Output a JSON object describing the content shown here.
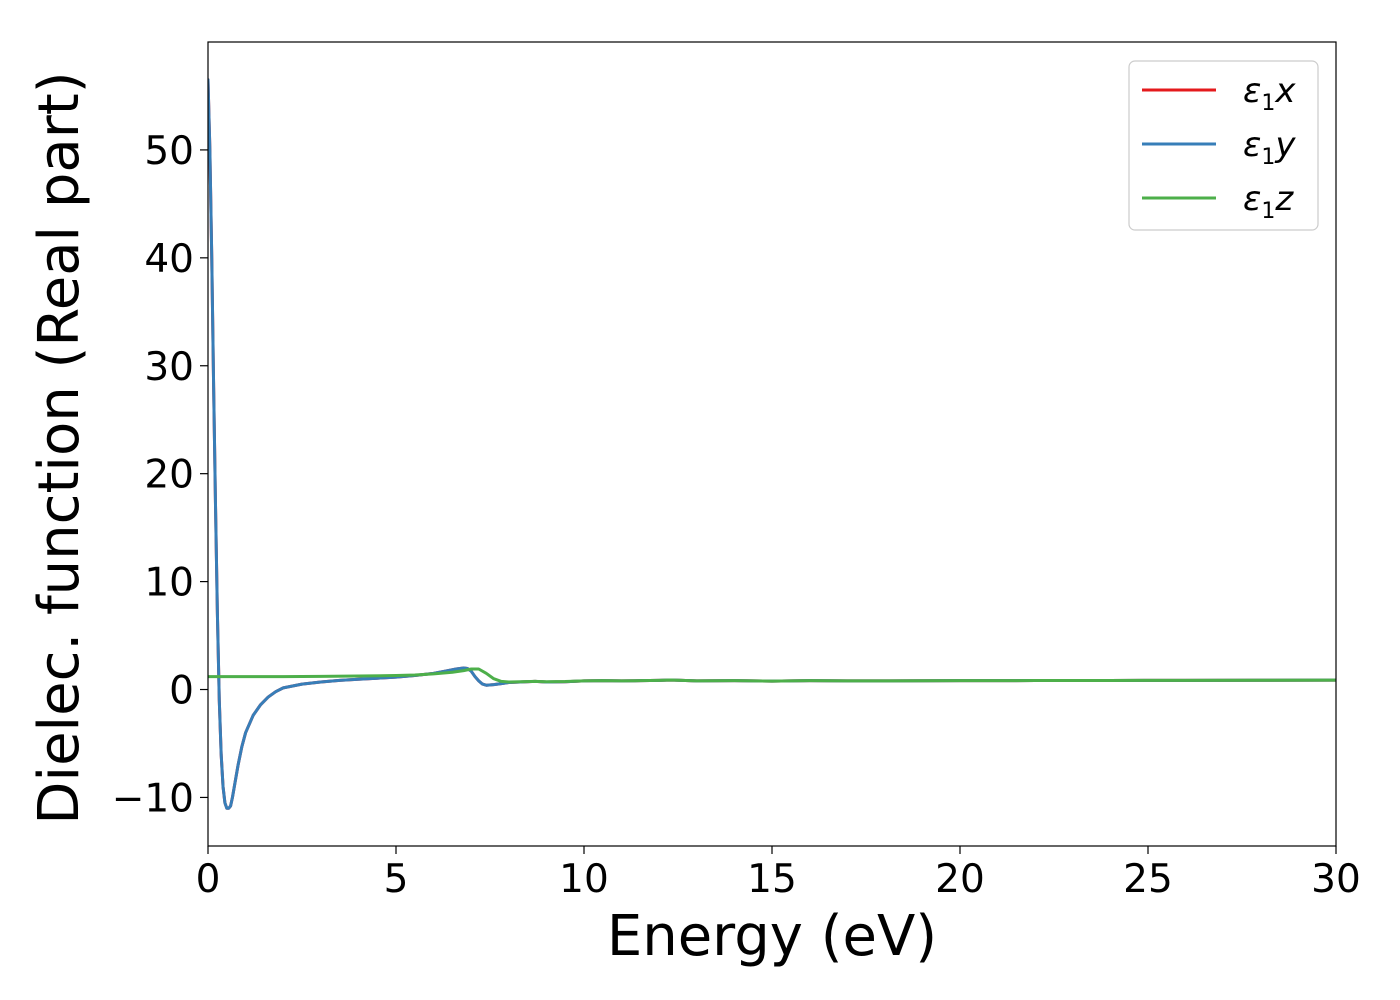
{
  "chart_data": {
    "type": "line",
    "title": "",
    "xlabel": "Energy (eV)",
    "ylabel": "Dielec. function (Real part)",
    "xlim": [
      0,
      30
    ],
    "ylim": [
      -14.5,
      60
    ],
    "xticks": [
      0,
      5,
      10,
      15,
      20,
      25,
      30
    ],
    "yticks": [
      -10,
      0,
      10,
      20,
      30,
      40,
      50
    ],
    "xtick_labels": [
      "0",
      "5",
      "10",
      "15",
      "20",
      "25",
      "30"
    ],
    "ytick_labels": [
      "−10",
      "0",
      "10",
      "20",
      "30",
      "40",
      "50"
    ],
    "grid": false,
    "legend_position": "top-right",
    "series": [
      {
        "name": "ε1x",
        "legend_main": "ε",
        "legend_sub": "1",
        "legend_var": "x",
        "color": "#e41a1c",
        "x": [
          0.0,
          0.05,
          0.1,
          0.15,
          0.2,
          0.25,
          0.3,
          0.35,
          0.4,
          0.45,
          0.5,
          0.55,
          0.6,
          0.65,
          0.7,
          0.8,
          0.9,
          1.0,
          1.2,
          1.4,
          1.6,
          1.8,
          2.0,
          2.5,
          3.0,
          3.5,
          4.0,
          4.5,
          5.0,
          5.5,
          6.0,
          6.3,
          6.6,
          6.8,
          6.9,
          7.0,
          7.1,
          7.2,
          7.3,
          7.4,
          7.6,
          7.8,
          8.0,
          8.3,
          8.7,
          9.0,
          9.5,
          10.0,
          10.5,
          11.0,
          11.5,
          12.0,
          12.3,
          12.6,
          13.0,
          14.0,
          15.0,
          16.0,
          17.0,
          18.0,
          20.0,
          22.0,
          24.0,
          26.0,
          28.0,
          30.0
        ],
        "y": [
          56.5,
          50.0,
          40.0,
          28.0,
          17.0,
          7.0,
          -1.0,
          -6.0,
          -9.0,
          -10.5,
          -11.0,
          -11.0,
          -10.8,
          -10.0,
          -9.0,
          -7.0,
          -5.3,
          -4.0,
          -2.4,
          -1.4,
          -0.7,
          -0.2,
          0.15,
          0.5,
          0.7,
          0.85,
          0.95,
          1.05,
          1.15,
          1.3,
          1.5,
          1.7,
          1.9,
          2.0,
          1.95,
          1.7,
          1.2,
          0.8,
          0.5,
          0.4,
          0.45,
          0.55,
          0.65,
          0.7,
          0.75,
          0.7,
          0.72,
          0.8,
          0.82,
          0.8,
          0.82,
          0.85,
          0.88,
          0.85,
          0.8,
          0.82,
          0.78,
          0.82,
          0.8,
          0.8,
          0.82,
          0.83,
          0.84,
          0.85,
          0.86,
          0.87
        ]
      },
      {
        "name": "ε1y",
        "legend_main": "ε",
        "legend_sub": "1",
        "legend_var": "y",
        "color": "#377eb8",
        "x": [
          0.0,
          0.05,
          0.1,
          0.15,
          0.2,
          0.25,
          0.3,
          0.35,
          0.4,
          0.45,
          0.5,
          0.55,
          0.6,
          0.65,
          0.7,
          0.8,
          0.9,
          1.0,
          1.2,
          1.4,
          1.6,
          1.8,
          2.0,
          2.5,
          3.0,
          3.5,
          4.0,
          4.5,
          5.0,
          5.5,
          6.0,
          6.3,
          6.6,
          6.8,
          6.9,
          7.0,
          7.1,
          7.2,
          7.3,
          7.4,
          7.6,
          7.8,
          8.0,
          8.3,
          8.7,
          9.0,
          9.5,
          10.0,
          10.5,
          11.0,
          11.5,
          12.0,
          12.3,
          12.6,
          13.0,
          14.0,
          15.0,
          16.0,
          17.0,
          18.0,
          20.0,
          22.0,
          24.0,
          26.0,
          28.0,
          30.0
        ],
        "y": [
          56.5,
          50.0,
          40.0,
          28.0,
          17.0,
          7.0,
          -1.0,
          -6.0,
          -9.0,
          -10.5,
          -11.0,
          -11.0,
          -10.8,
          -10.0,
          -9.0,
          -7.0,
          -5.3,
          -4.0,
          -2.4,
          -1.4,
          -0.7,
          -0.2,
          0.15,
          0.5,
          0.7,
          0.85,
          0.95,
          1.05,
          1.15,
          1.3,
          1.5,
          1.7,
          1.9,
          2.0,
          1.95,
          1.7,
          1.2,
          0.8,
          0.5,
          0.4,
          0.45,
          0.55,
          0.65,
          0.7,
          0.75,
          0.7,
          0.72,
          0.8,
          0.82,
          0.8,
          0.82,
          0.85,
          0.88,
          0.85,
          0.8,
          0.82,
          0.78,
          0.82,
          0.8,
          0.8,
          0.82,
          0.83,
          0.84,
          0.85,
          0.86,
          0.87
        ]
      },
      {
        "name": "ε1z",
        "legend_main": "ε",
        "legend_sub": "1",
        "legend_var": "z",
        "color": "#4daf4a",
        "x": [
          0.0,
          1.0,
          2.0,
          3.0,
          4.0,
          5.0,
          5.5,
          6.0,
          6.5,
          6.8,
          7.0,
          7.2,
          7.4,
          7.6,
          7.8,
          8.0,
          8.3,
          8.7,
          9.0,
          9.5,
          10.0,
          10.5,
          11.0,
          11.5,
          12.0,
          12.3,
          12.6,
          13.0,
          14.0,
          15.0,
          16.0,
          17.0,
          18.0,
          20.0,
          22.0,
          24.0,
          26.0,
          28.0,
          30.0
        ],
        "y": [
          1.2,
          1.2,
          1.2,
          1.22,
          1.25,
          1.3,
          1.35,
          1.45,
          1.6,
          1.75,
          1.9,
          1.9,
          1.5,
          1.0,
          0.75,
          0.7,
          0.72,
          0.75,
          0.72,
          0.74,
          0.8,
          0.82,
          0.8,
          0.82,
          0.85,
          0.88,
          0.85,
          0.8,
          0.82,
          0.78,
          0.82,
          0.8,
          0.8,
          0.82,
          0.83,
          0.84,
          0.85,
          0.86,
          0.87
        ]
      }
    ]
  }
}
